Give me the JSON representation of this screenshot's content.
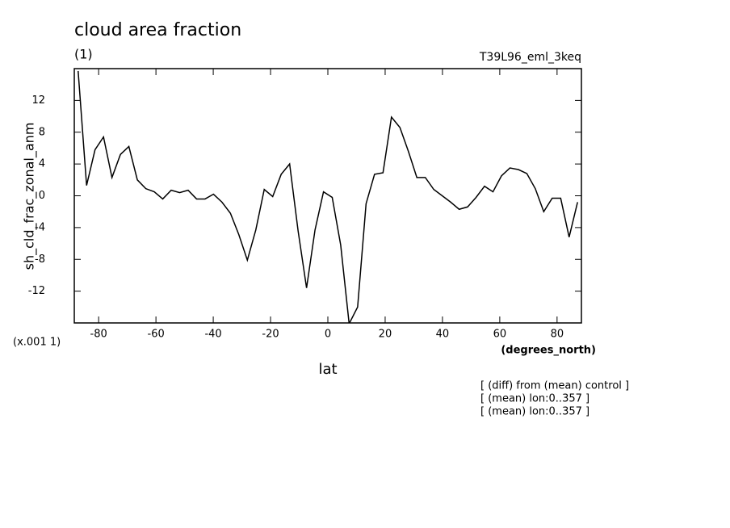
{
  "chart_data": {
    "type": "line",
    "title": "cloud area fraction",
    "subtitle": "(1)",
    "dataset": "T39L96_eml_3keq",
    "y_label": "sh_cld_frac_zonal_anm",
    "y_units": "(x.001 1)",
    "x_units": "(degrees_north)",
    "x_label": "lat",
    "notes": [
      "[ (diff) from (mean) control ]",
      "[ (mean) lon:0..357 ]",
      "[ (mean) lon:0..357 ]"
    ],
    "x": [
      -87.16,
      -84.21,
      -81.26,
      -78.3,
      -75.35,
      -72.4,
      -69.45,
      -66.49,
      -63.54,
      -60.59,
      -57.63,
      -54.68,
      -51.73,
      -48.78,
      -45.82,
      -42.87,
      -39.92,
      -36.96,
      -34.01,
      -31.06,
      -28.1,
      -25.15,
      -22.2,
      -19.25,
      -16.29,
      -13.34,
      -10.39,
      -7.43,
      -4.48,
      -1.52,
      1.52,
      4.48,
      7.43,
      10.39,
      13.34,
      16.29,
      19.25,
      22.2,
      25.15,
      28.1,
      31.06,
      34.01,
      36.96,
      39.92,
      42.87,
      45.82,
      48.78,
      51.73,
      54.68,
      57.63,
      60.59,
      63.54,
      66.49,
      69.45,
      72.4,
      75.35,
      78.3,
      81.26,
      84.21,
      87.16
    ],
    "series": [
      {
        "name": "sh_cld_frac_zonal_anm",
        "color": "#000000",
        "values": [
          15.7,
          1.3,
          5.8,
          7.4,
          2.3,
          5.2,
          6.2,
          2.0,
          0.9,
          0.5,
          -0.4,
          0.7,
          0.4,
          0.7,
          -0.4,
          -0.4,
          0.2,
          -0.8,
          -2.2,
          -4.9,
          -8.1,
          -4.3,
          0.8,
          -0.1,
          2.7,
          4.0,
          -4.4,
          -11.6,
          -4.3,
          0.5,
          -0.2,
          -6.2,
          -16.1,
          -14.0,
          -1.0,
          2.7,
          2.9,
          9.9,
          8.6,
          5.6,
          2.3,
          2.3,
          0.8,
          0.0,
          -0.8,
          -1.7,
          -1.4,
          -0.2,
          1.2,
          0.5,
          2.5,
          3.5,
          3.3,
          2.8,
          0.9,
          -2.0,
          -0.3,
          -0.3,
          -5.2,
          -0.8
        ]
      }
    ],
    "xlim": [
      -88.5,
      88.5
    ],
    "ylim": [
      -16,
      16
    ],
    "xticks": [
      -80,
      -60,
      -40,
      -20,
      0,
      20,
      40,
      60,
      80
    ],
    "yticks": [
      -12,
      -8,
      -4,
      0,
      4,
      8,
      12
    ]
  }
}
